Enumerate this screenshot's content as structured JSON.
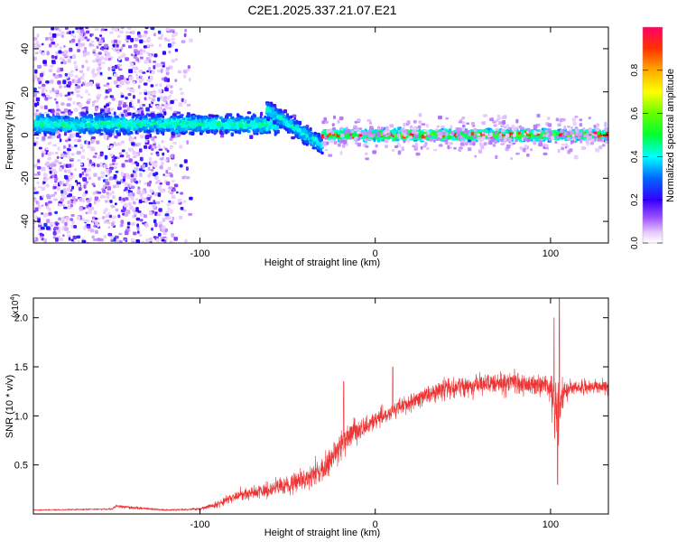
{
  "figure": {
    "title": "C2E1.2025.337.21.07.E21"
  },
  "colors": {
    "snr_line": "#ee3333",
    "frame": "#000000",
    "background": "#ffffff"
  },
  "chart_data": [
    {
      "type": "heatmap",
      "name": "spectrogram",
      "xlabel": "Height of straight line (km)",
      "ylabel": "Frequency (Hz)",
      "xlim": [
        -195,
        133
      ],
      "ylim": [
        -50,
        50
      ],
      "xticks": [
        -100,
        0,
        100
      ],
      "yticks": [
        -40,
        -20,
        0,
        20,
        40
      ],
      "grid": false,
      "colorbar": {
        "label": "Normalized spectral amplitude",
        "range": [
          0,
          1
        ],
        "ticks": [
          0.0,
          0.2,
          0.4,
          0.6,
          0.8
        ],
        "colormap": "rainbow (white-purple-blue-cyan-green-yellow-orange-red)"
      },
      "description_bands": [
        {
          "x_range": [
            -195,
            -115
          ],
          "freq_range": [
            -50,
            50
          ],
          "amplitude": "low, scattered"
        },
        {
          "x_range": [
            -195,
            -45
          ],
          "freq_center": 5,
          "amplitude": "0.2-0.5"
        },
        {
          "x_range": [
            -60,
            -30
          ],
          "freq_center_start": 12,
          "freq_center_end": -5,
          "amplitude": "0.3-0.5"
        },
        {
          "x_range": [
            -30,
            133
          ],
          "freq_center": 0,
          "amplitude": "0.5-0.95"
        }
      ]
    },
    {
      "type": "line",
      "name": "snr",
      "xlabel": "Height of straight line (km)",
      "ylabel": "SNR (10 * v/v)",
      "ylabel_multiplier_base": "(x10",
      "ylabel_multiplier_exp": "4",
      "ylabel_multiplier_close": ")",
      "xlim": [
        -195,
        133
      ],
      "ylim": [
        0,
        2.2
      ],
      "xticks": [
        -100,
        0,
        100
      ],
      "yticks": [
        0.5,
        1.0,
        1.5,
        2.0
      ],
      "ytick_labels": [
        "0.5",
        "1.0",
        "1.5",
        "2.0"
      ],
      "grid": false,
      "series": [
        {
          "name": "SNR",
          "envelope_x": [
            -195,
            -150,
            -148,
            -120,
            -100,
            -90,
            -80,
            -70,
            -60,
            -50,
            -40,
            -30,
            -25,
            -20,
            -15,
            -10,
            -5,
            0,
            10,
            20,
            30,
            40,
            50,
            60,
            70,
            80,
            90,
            100,
            102,
            104,
            106,
            110,
            120,
            133
          ],
          "envelope_mean": [
            0.04,
            0.05,
            0.08,
            0.04,
            0.05,
            0.1,
            0.18,
            0.22,
            0.25,
            0.3,
            0.35,
            0.45,
            0.55,
            0.7,
            0.8,
            0.85,
            0.9,
            0.95,
            1.05,
            1.15,
            1.22,
            1.28,
            1.3,
            1.32,
            1.33,
            1.33,
            1.32,
            1.3,
            1.1,
            1.0,
            1.2,
            1.28,
            1.3,
            1.3
          ],
          "envelope_noise": [
            0.01,
            0.015,
            0.03,
            0.015,
            0.02,
            0.06,
            0.1,
            0.12,
            0.14,
            0.16,
            0.18,
            0.22,
            0.25,
            0.25,
            0.22,
            0.2,
            0.18,
            0.15,
            0.15,
            0.15,
            0.16,
            0.17,
            0.18,
            0.19,
            0.19,
            0.19,
            0.18,
            0.18,
            0.6,
            0.7,
            0.4,
            0.14,
            0.12,
            0.12
          ],
          "peaks": [
            {
              "x": -18,
              "y": 1.35
            },
            {
              "x": 10,
              "y": 1.5
            },
            {
              "x": 102,
              "y": 2.0
            },
            {
              "x": 104,
              "y": 0.3
            },
            {
              "x": 105,
              "y": 2.2
            }
          ]
        }
      ]
    }
  ]
}
